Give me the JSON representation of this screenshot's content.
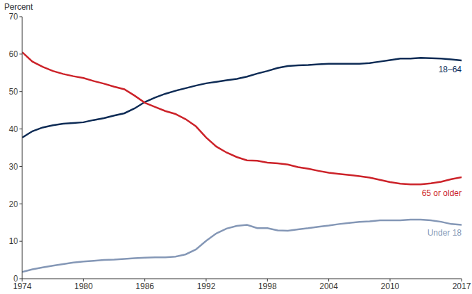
{
  "chart_data": {
    "type": "line",
    "y_label": "Percent",
    "x": [
      1974,
      1975,
      1976,
      1977,
      1978,
      1979,
      1980,
      1981,
      1982,
      1983,
      1984,
      1985,
      1986,
      1987,
      1988,
      1989,
      1990,
      1991,
      1992,
      1993,
      1994,
      1995,
      1996,
      1997,
      1998,
      1999,
      2000,
      2001,
      2002,
      2003,
      2004,
      2005,
      2006,
      2007,
      2008,
      2009,
      2010,
      2011,
      2012,
      2013,
      2014,
      2015,
      2016,
      2017
    ],
    "xlim": [
      1974,
      2017
    ],
    "xticks": [
      1974,
      1980,
      1986,
      1992,
      1998,
      2004,
      2010,
      2017
    ],
    "ylim": [
      0,
      70
    ],
    "yticks": [
      0,
      10,
      20,
      30,
      40,
      50,
      60,
      70
    ],
    "grid": false,
    "series": [
      {
        "name": "18–64",
        "color": "#0d2b55",
        "values": [
          37.7,
          39.4,
          40.4,
          41.0,
          41.4,
          41.6,
          41.8,
          42.4,
          42.9,
          43.6,
          44.2,
          45.5,
          47.2,
          48.4,
          49.4,
          50.2,
          50.9,
          51.6,
          52.2,
          52.6,
          53.0,
          53.4,
          54.0,
          54.8,
          55.5,
          56.3,
          56.8,
          57.0,
          57.1,
          57.3,
          57.4,
          57.4,
          57.4,
          57.4,
          57.6,
          58.0,
          58.4,
          58.8,
          58.8,
          59.0,
          58.9,
          58.8,
          58.6,
          58.3
        ]
      },
      {
        "name": "65 or older",
        "color": "#cc2229",
        "values": [
          60.5,
          58.0,
          56.6,
          55.5,
          54.7,
          54.1,
          53.6,
          52.8,
          52.1,
          51.3,
          50.6,
          48.9,
          47.0,
          45.9,
          44.8,
          44.0,
          42.6,
          40.7,
          37.7,
          35.3,
          33.7,
          32.5,
          31.6,
          31.5,
          31.0,
          30.8,
          30.5,
          29.8,
          29.4,
          28.8,
          28.3,
          28.0,
          27.7,
          27.4,
          27.0,
          26.4,
          25.8,
          25.4,
          25.2,
          25.2,
          25.5,
          25.9,
          26.6,
          27.1
        ]
      },
      {
        "name": "Under 18",
        "color": "#8497b6",
        "values": [
          1.8,
          2.5,
          3.0,
          3.5,
          3.9,
          4.3,
          4.6,
          4.8,
          5.0,
          5.1,
          5.3,
          5.5,
          5.6,
          5.7,
          5.7,
          5.9,
          6.5,
          7.8,
          10.1,
          12.1,
          13.4,
          14.1,
          14.4,
          13.5,
          13.5,
          12.9,
          12.8,
          13.2,
          13.5,
          13.9,
          14.2,
          14.6,
          14.9,
          15.2,
          15.3,
          15.6,
          15.6,
          15.6,
          15.8,
          15.8,
          15.6,
          15.2,
          14.6,
          14.4
        ]
      }
    ]
  }
}
